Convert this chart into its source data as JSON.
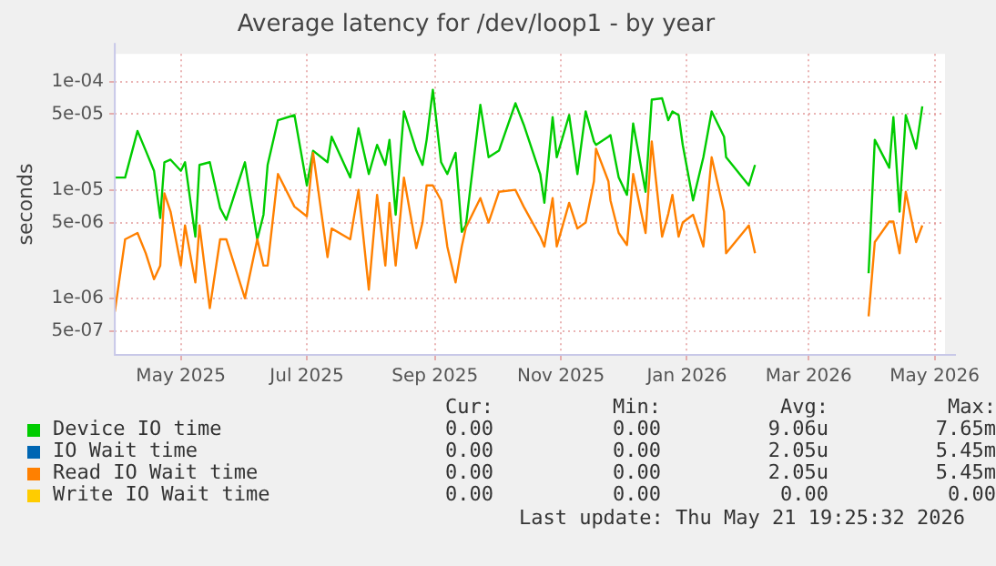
{
  "chart_data": {
    "type": "line",
    "title": "Average latency for /dev/loop1 - by year",
    "ylabel": "seconds",
    "log": "y",
    "grid": true,
    "legend": "bottom",
    "marker": "none",
    "line_style": "solid",
    "xlim": [
      "2025-03-30",
      "2026-05-06"
    ],
    "xticks": [
      {
        "value": "2025-05-01",
        "label": "May 2025"
      },
      {
        "value": "2025-07-01",
        "label": "Jul 2025"
      },
      {
        "value": "2025-09-01",
        "label": "Sep 2025"
      },
      {
        "value": "2025-11-01",
        "label": "Nov 2025"
      },
      {
        "value": "2026-01-01",
        "label": "Jan 2026"
      },
      {
        "value": "2026-03-01",
        "label": "Mar 2026"
      },
      {
        "value": "2026-05-01",
        "label": "May 2026"
      }
    ],
    "ylim": [
      3e-07,
      0.00018
    ],
    "yticks": [
      {
        "value": 5e-07,
        "label": "5e-07"
      },
      {
        "value": 1e-06,
        "label": "1e-06"
      },
      {
        "value": 5e-06,
        "label": "5e-06"
      },
      {
        "value": 1e-05,
        "label": "1e-05"
      },
      {
        "value": 5e-05,
        "label": "5e-05"
      },
      {
        "value": 0.0001,
        "label": "1e-04"
      }
    ],
    "x": [
      "2025-03-30",
      "2025-04-04",
      "2025-04-10",
      "2025-04-14",
      "2025-04-18",
      "2025-04-21",
      "2025-04-23",
      "2025-04-26",
      "2025-05-01",
      "2025-05-03",
      "2025-05-08",
      "2025-05-10",
      "2025-05-15",
      "2025-05-20",
      "2025-05-23",
      "2025-06-01",
      "2025-06-07",
      "2025-06-10",
      "2025-06-12",
      "2025-06-17",
      "2025-06-25",
      "2025-07-01",
      "2025-07-04",
      "2025-07-11",
      "2025-07-13",
      "2025-07-22",
      "2025-07-26",
      "2025-07-31",
      "2025-08-04",
      "2025-08-08",
      "2025-08-10",
      "2025-08-13",
      "2025-08-17",
      "2025-08-23",
      "2025-08-26",
      "2025-08-28",
      "2025-08-31",
      "2025-09-04",
      "2025-09-07",
      "2025-09-11",
      "2025-09-14",
      "2025-09-16",
      "2025-09-23",
      "2025-09-27",
      "2025-10-02",
      "2025-10-10",
      "2025-10-14",
      "2025-10-22",
      "2025-10-24",
      "2025-10-28",
      "2025-10-30",
      "2025-11-05",
      "2025-11-09",
      "2025-11-13",
      "2025-11-17",
      "2025-11-18",
      "2025-11-24",
      "2025-11-25",
      "2025-11-29",
      "2025-12-03",
      "2025-12-06",
      "2025-12-12",
      "2025-12-15",
      "2025-12-20",
      "2025-12-23",
      "2025-12-25",
      "2025-12-28",
      "2025-12-30",
      "2026-01-04",
      "2026-01-09",
      "2026-01-13",
      "2026-01-19",
      "2026-01-20",
      "2026-01-31",
      "2026-02-03",
      "2026-02-20",
      "2026-03-30",
      "2026-04-02",
      "2026-04-09",
      "2026-04-11",
      "2026-04-14",
      "2026-04-17",
      "2026-04-22",
      "2026-04-25"
    ],
    "series": [
      {
        "name": "Device IO time",
        "color": "#00cc00",
        "values": [
          1.3e-05,
          1.3e-05,
          3.5e-05,
          2.3e-05,
          1.5e-05,
          5.5e-06,
          1.8e-05,
          1.9e-05,
          1.5e-05,
          1.8e-05,
          3.7e-06,
          1.7e-05,
          1.8e-05,
          6.8e-06,
          5.3e-06,
          1.8e-05,
          3.5e-06,
          5.9e-06,
          1.7e-05,
          4.4e-05,
          4.9e-05,
          1.1e-05,
          2.3e-05,
          1.8e-05,
          3.1e-05,
          1.3e-05,
          3.7e-05,
          1.4e-05,
          2.6e-05,
          1.7e-05,
          2.9e-05,
          5.9e-06,
          5.3e-05,
          2.3e-05,
          1.7e-05,
          2.9e-05,
          8.4e-05,
          1.8e-05,
          1.4e-05,
          2.2e-05,
          4.1e-06,
          4.7e-06,
          6.1e-05,
          2e-05,
          2.3e-05,
          6.3e-05,
          4e-05,
          1.4e-05,
          7.6e-06,
          4.7e-05,
          2e-05,
          4.9e-05,
          1.4e-05,
          5.3e-05,
          2.8e-05,
          2.6e-05,
          3.1e-05,
          3.2e-05,
          1.3e-05,
          9e-06,
          4.1e-05,
          9.6e-06,
          6.8e-05,
          7e-05,
          4.4e-05,
          5.3e-05,
          4.9e-05,
          2.6e-05,
          8e-06,
          2e-05,
          5.3e-05,
          3.1e-05,
          2e-05,
          1.1e-05,
          1.7e-05,
          null,
          1.7e-06,
          2.9e-05,
          1.6e-05,
          4.7e-05,
          6.3e-06,
          4.9e-05,
          2.4e-05,
          5.9e-05
        ]
      },
      {
        "name": "IO Wait time",
        "color": "#0066b3",
        "values": [
          null,
          null,
          null,
          null,
          null,
          null,
          null,
          null,
          null,
          null,
          null,
          null,
          null,
          null,
          null,
          null,
          null,
          null,
          null,
          null,
          null,
          null,
          null,
          null,
          null,
          null,
          null,
          null,
          null,
          null,
          null,
          null,
          null,
          null,
          null,
          null,
          null,
          null,
          null,
          null,
          null,
          null,
          null,
          null,
          null,
          null,
          null,
          null,
          null,
          null,
          null,
          null,
          null,
          null,
          null,
          null,
          null,
          null,
          null,
          null,
          null,
          null,
          null,
          null,
          null,
          null,
          null,
          null,
          null,
          null,
          null,
          null,
          null,
          null,
          null,
          null,
          null,
          null,
          null,
          null,
          null,
          null,
          null,
          null
        ]
      },
      {
        "name": "Read IO Wait time",
        "color": "#ff8000",
        "values": [
          7.5e-07,
          3.5e-06,
          4e-06,
          2.6e-06,
          1.5e-06,
          2e-06,
          9.3e-06,
          6.3e-06,
          2e-06,
          4.7e-06,
          1.4e-06,
          4.7e-06,
          8.1e-07,
          3.5e-06,
          3.5e-06,
          1e-06,
          3.5e-06,
          2e-06,
          2e-06,
          1.4e-05,
          7e-06,
          5.7e-06,
          2.2e-05,
          2.4e-06,
          4.4e-06,
          3.5e-06,
          1e-05,
          1.2e-06,
          9e-06,
          2e-06,
          7.6e-06,
          2e-06,
          1.3e-05,
          2.9e-06,
          5e-06,
          1.1e-05,
          1.1e-05,
          8e-06,
          3e-06,
          1.4e-06,
          3e-06,
          4.5e-06,
          8.4e-06,
          5e-06,
          9.6e-06,
          1e-05,
          7e-06,
          3.7e-06,
          3e-06,
          8.4e-06,
          3e-06,
          7.6e-06,
          4.4e-06,
          5e-06,
          1.2e-05,
          2.4e-05,
          1.2e-05,
          8e-06,
          4e-06,
          3.1e-06,
          1.4e-05,
          4e-06,
          2.8e-05,
          3.7e-06,
          6e-06,
          9e-06,
          3.7e-06,
          5e-06,
          5.9e-06,
          3e-06,
          2e-05,
          6.3e-06,
          2.6e-06,
          4.7e-06,
          2.6e-06,
          null,
          6.8e-07,
          3.3e-06,
          5.1e-06,
          5.1e-06,
          2.6e-06,
          9.6e-06,
          3.3e-06,
          4.7e-06
        ]
      },
      {
        "name": "Write IO Wait time",
        "color": "#ffcc00",
        "values": [
          null,
          null,
          null,
          null,
          null,
          null,
          null,
          null,
          null,
          null,
          null,
          null,
          null,
          null,
          null,
          null,
          null,
          null,
          null,
          null,
          null,
          null,
          null,
          null,
          null,
          null,
          null,
          null,
          null,
          null,
          null,
          null,
          null,
          null,
          null,
          null,
          null,
          null,
          null,
          null,
          null,
          null,
          null,
          null,
          null,
          null,
          null,
          null,
          null,
          null,
          null,
          null,
          null,
          null,
          null,
          null,
          null,
          null,
          null,
          null,
          null,
          null,
          null,
          null,
          null,
          null,
          null,
          null,
          null,
          null,
          null,
          null,
          null,
          null,
          null,
          null,
          null,
          null,
          null,
          null,
          null,
          null,
          null,
          null
        ]
      }
    ],
    "annotations": [
      "Cur:",
      "Min:",
      "Avg:",
      "Max:",
      "0.00",
      "0.00",
      "9.06u",
      "7.65m",
      "0.00",
      "0.00",
      "2.05u",
      "5.45m",
      "0.00",
      "0.00",
      "2.05u",
      "5.45m",
      "0.00",
      "0.00",
      "0.00",
      "0.00",
      "Last update: Thu May 21 19:25:32 2026"
    ]
  }
}
